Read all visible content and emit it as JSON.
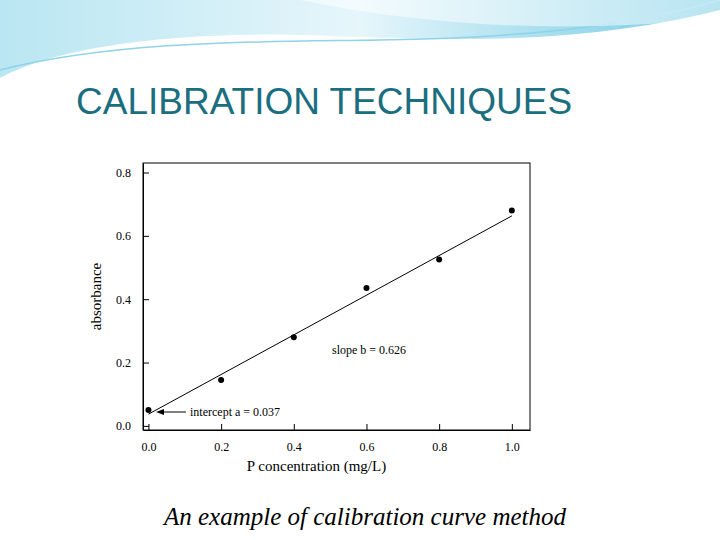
{
  "chart_data": {
    "type": "scatter",
    "title": "CALIBRATION TECHNIQUES",
    "caption": "An example of calibration curve method",
    "x_label": "P concentration (mg/L)",
    "y_label": "absorbance",
    "annotations": [
      "slope b = 0.626",
      "intercept a = 0.037"
    ],
    "series": [
      {
        "type": "scatter",
        "marker": "circle",
        "color": "#000000",
        "x": [
          0.0,
          0.2,
          0.4,
          0.6,
          0.8,
          1.0
        ],
        "values": [
          0.05,
          0.145,
          0.28,
          0.435,
          0.525,
          0.68
        ]
      },
      {
        "type": "line",
        "line_style": "solid",
        "color": "#000000",
        "x": [
          0.0,
          1.0
        ],
        "values": [
          0.037,
          0.663
        ]
      }
    ],
    "xlim": [
      -0.015,
      1.05
    ],
    "ylim": [
      -0.013,
      0.83
    ],
    "xticks": [
      {
        "value": 0,
        "label": "0.0"
      },
      {
        "value": 0.2,
        "label": "0.2"
      },
      {
        "value": 0.4,
        "label": "0.4"
      },
      {
        "value": 0.6,
        "label": "0.6"
      },
      {
        "value": 0.8,
        "label": "0.8"
      },
      {
        "value": 1,
        "label": "1.0"
      }
    ],
    "yticks": [
      {
        "value": 0,
        "label": "0.0"
      },
      {
        "value": 0.2,
        "label": "0.2"
      },
      {
        "value": 0.4,
        "label": "0.4"
      },
      {
        "value": 0.6,
        "label": "0.6"
      },
      {
        "value": 0.8,
        "label": "0.8"
      }
    ],
    "grid": false
  }
}
